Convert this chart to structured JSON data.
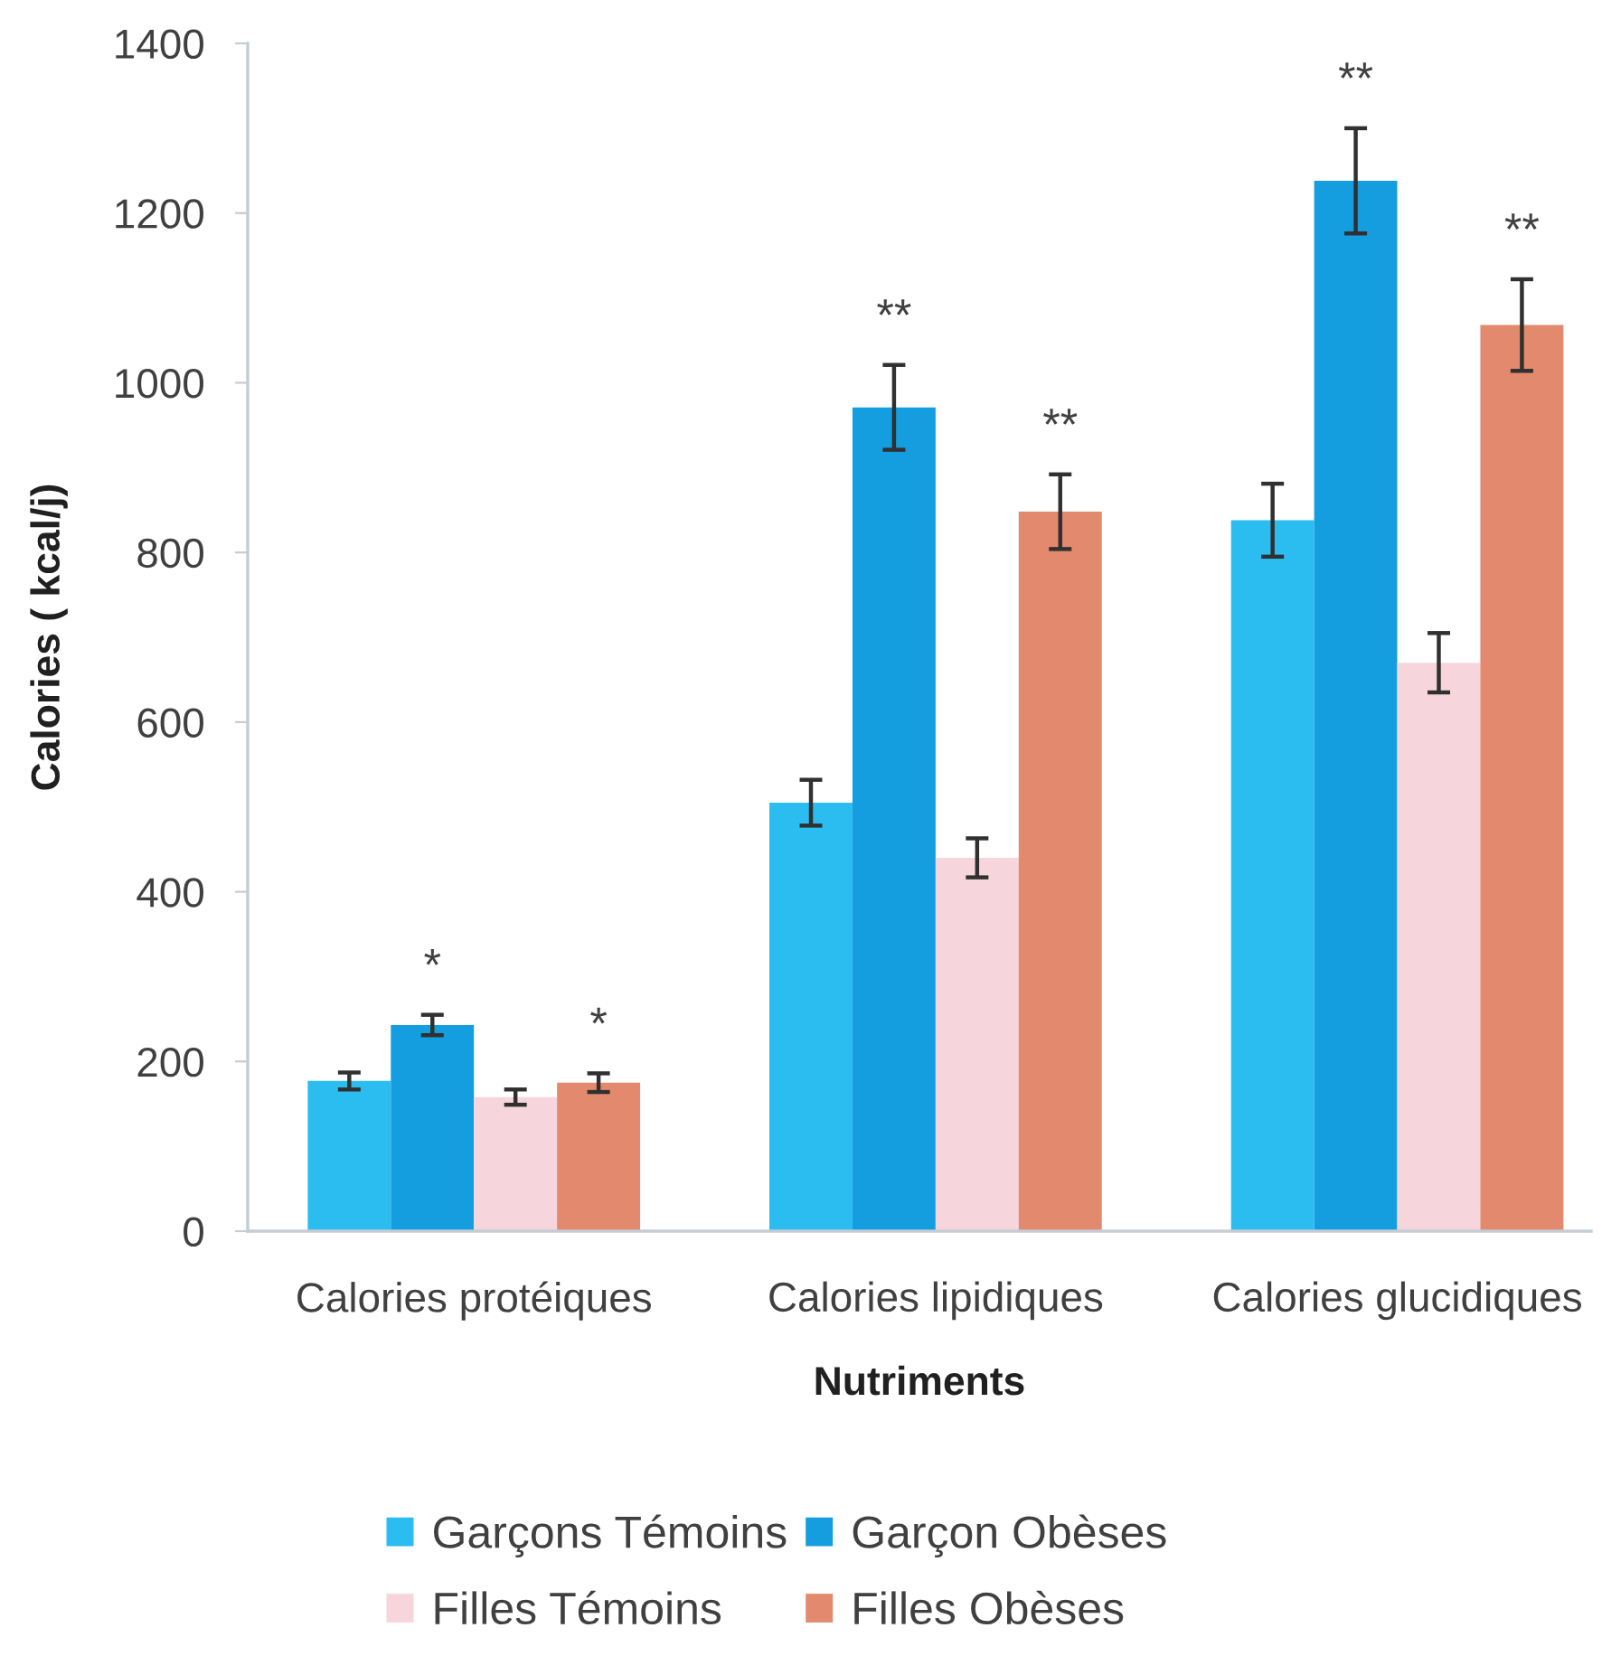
{
  "chart_data": {
    "type": "bar",
    "xlabel": "Nutriments",
    "ylabel": "Calories ( kcal/j)",
    "categories": [
      "Calories protéiques",
      "Calories lipidiques",
      "Calories glucidiques"
    ],
    "series": [
      {
        "name": "Garçons Témoins",
        "color": "#2bbcf0",
        "values": [
          177,
          505,
          838
        ],
        "errors": [
          10,
          27,
          43
        ]
      },
      {
        "name": "Garçon Obèses",
        "color": "#149ee0",
        "values": [
          243,
          971,
          1238
        ],
        "errors": [
          12,
          50,
          62
        ],
        "value_labels": [
          "*",
          "**",
          "**"
        ]
      },
      {
        "name": "Filles Témoins",
        "color": "#f7d5dc",
        "values": [
          158,
          440,
          670
        ],
        "errors": [
          9,
          23,
          35
        ]
      },
      {
        "name": "Filles Obèses",
        "color": "#e2896e",
        "values": [
          175,
          848,
          1068
        ],
        "errors": [
          11,
          44,
          54
        ],
        "value_labels": [
          "*",
          "**",
          "**"
        ]
      }
    ],
    "ylim": [
      0,
      1400
    ],
    "yticks": [
      0,
      200,
      400,
      600,
      800,
      1000,
      1200,
      1400
    ],
    "grid": false,
    "legend": "bottom"
  }
}
